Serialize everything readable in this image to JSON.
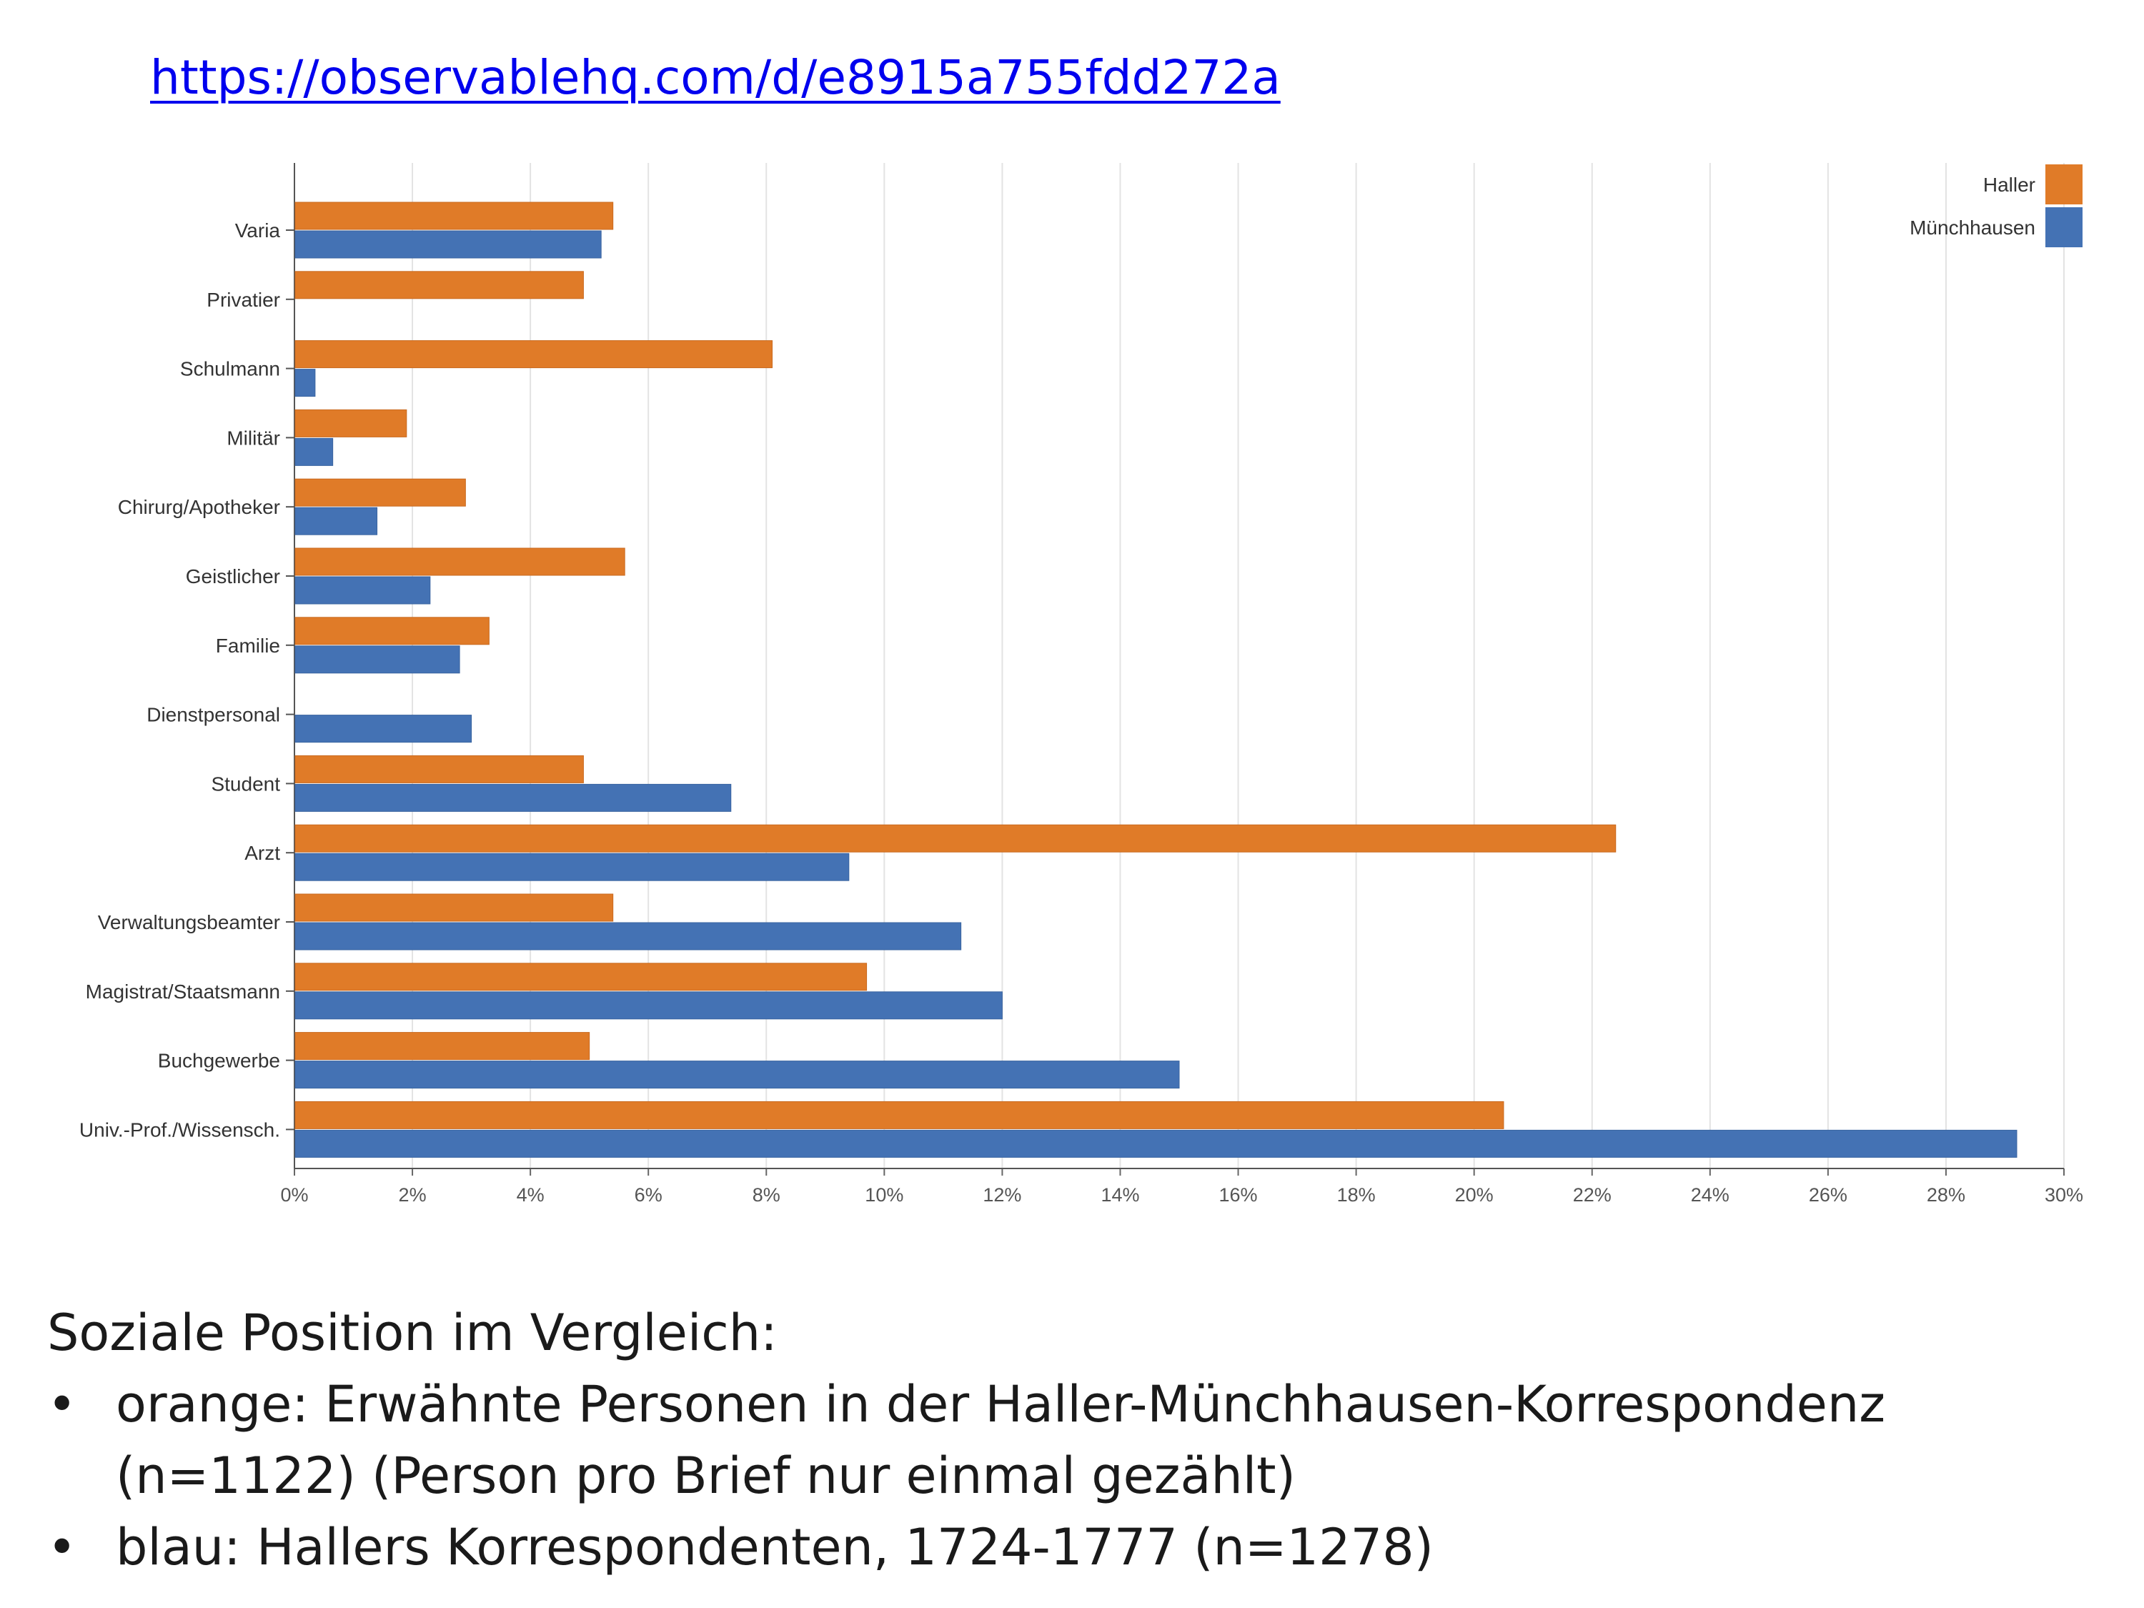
{
  "link_text": "https://observablehq.com/d/e8915a755fdd272a",
  "colors": {
    "haller": "#e07b28",
    "muenchhausen": "#4472b4"
  },
  "chart_data": {
    "type": "bar",
    "orientation": "horizontal",
    "categories": [
      "Varia",
      "Privatier",
      "Schulmann",
      "Militär",
      "Chirurg/Apotheker",
      "Geistlicher",
      "Familie",
      "Dienstpersonal",
      "Student",
      "Arzt",
      "Verwaltungsbeamter",
      "Magistrat/Staatsmann",
      "Buchgewerbe",
      "Univ.-Prof./Wissensch."
    ],
    "series": [
      {
        "name": "Haller",
        "color": "#e07b28",
        "values": [
          5.4,
          4.9,
          8.1,
          1.9,
          2.9,
          5.6,
          3.3,
          0,
          4.9,
          22.4,
          5.4,
          9.7,
          5.0,
          20.5
        ]
      },
      {
        "name": "Münchhausen",
        "color": "#4472b4",
        "values": [
          5.2,
          0,
          0.35,
          0.65,
          1.4,
          2.3,
          2.8,
          3.0,
          7.4,
          9.4,
          11.3,
          12.0,
          15.0,
          29.2
        ]
      }
    ],
    "x_ticks": [
      "0%",
      "2%",
      "4%",
      "6%",
      "8%",
      "10%",
      "12%",
      "14%",
      "16%",
      "18%",
      "20%",
      "22%",
      "24%",
      "26%",
      "28%",
      "30%"
    ],
    "xlim": [
      0,
      30
    ],
    "grid": "vertical",
    "legend": "top-right"
  },
  "caption": {
    "title": "Soziale Position im Vergleich:",
    "items": [
      {
        "bullet": "•",
        "keyword": "orange:",
        "text": " Erwähnte Personen in der Haller-Münchhausen-Korrespondenz (n=1122) (Person pro Brief nur einmal gezählt)"
      },
      {
        "bullet": "•",
        "keyword": "",
        "text": "blau: Hallers Korrespondenten, 1724-1777 (n=1278)"
      }
    ]
  }
}
